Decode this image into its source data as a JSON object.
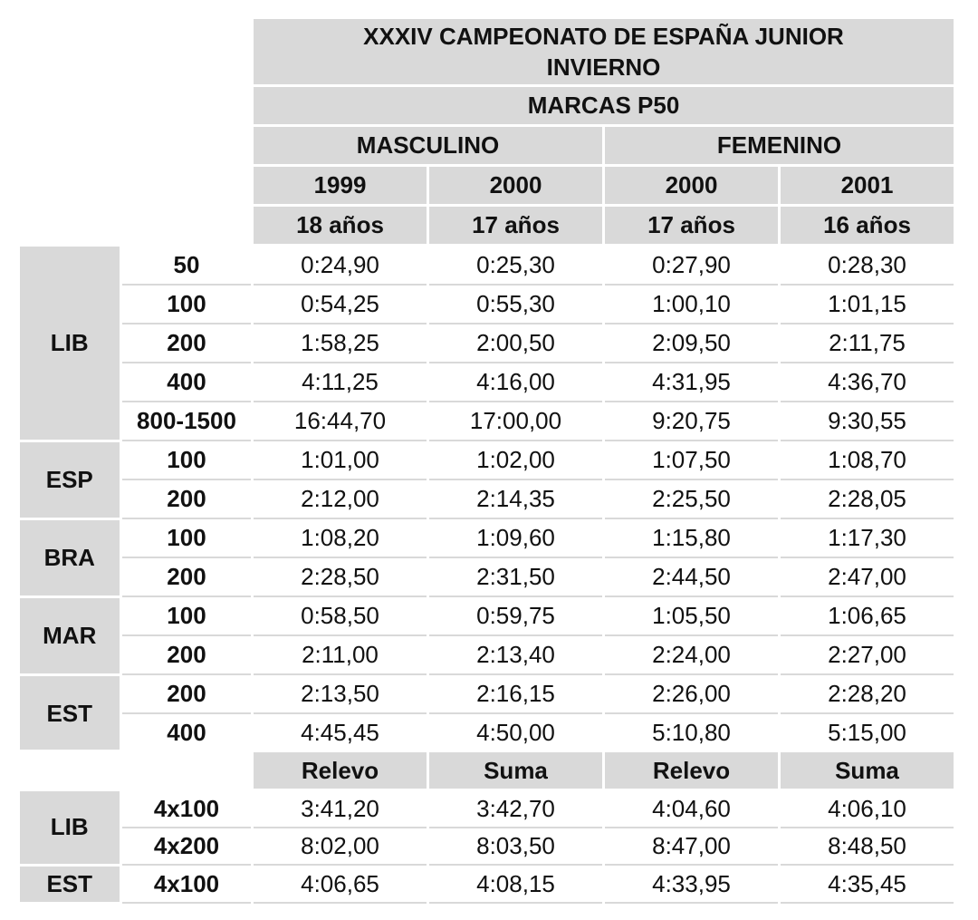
{
  "header": {
    "title_line1": "XXXIV CAMPEONATO DE ESPAÑA JUNIOR",
    "title_line2": "INVIERNO",
    "subtitle": "MARCAS P50",
    "genders": [
      "MASCULINO",
      "FEMENINO"
    ],
    "years": [
      "1999",
      "2000",
      "2000",
      "2001"
    ],
    "ages": [
      "18 años",
      "17 años",
      "17 años",
      "16 años"
    ]
  },
  "groups": [
    {
      "style": "LIB",
      "rows": [
        {
          "distance": "50",
          "values": [
            "0:24,90",
            "0:25,30",
            "0:27,90",
            "0:28,30"
          ]
        },
        {
          "distance": "100",
          "values": [
            "0:54,25",
            "0:55,30",
            "1:00,10",
            "1:01,15"
          ]
        },
        {
          "distance": "200",
          "values": [
            "1:58,25",
            "2:00,50",
            "2:09,50",
            "2:11,75"
          ]
        },
        {
          "distance": "400",
          "values": [
            "4:11,25",
            "4:16,00",
            "4:31,95",
            "4:36,70"
          ]
        },
        {
          "distance": "800-1500",
          "values": [
            "16:44,70",
            "17:00,00",
            "9:20,75",
            "9:30,55"
          ]
        }
      ]
    },
    {
      "style": "ESP",
      "rows": [
        {
          "distance": "100",
          "values": [
            "1:01,00",
            "1:02,00",
            "1:07,50",
            "1:08,70"
          ]
        },
        {
          "distance": "200",
          "values": [
            "2:12,00",
            "2:14,35",
            "2:25,50",
            "2:28,05"
          ]
        }
      ]
    },
    {
      "style": "BRA",
      "rows": [
        {
          "distance": "100",
          "values": [
            "1:08,20",
            "1:09,60",
            "1:15,80",
            "1:17,30"
          ]
        },
        {
          "distance": "200",
          "values": [
            "2:28,50",
            "2:31,50",
            "2:44,50",
            "2:47,00"
          ]
        }
      ]
    },
    {
      "style": "MAR",
      "rows": [
        {
          "distance": "100",
          "values": [
            "0:58,50",
            "0:59,75",
            "1:05,50",
            "1:06,65"
          ]
        },
        {
          "distance": "200",
          "values": [
            "2:11,00",
            "2:13,40",
            "2:24,00",
            "2:27,00"
          ]
        }
      ]
    },
    {
      "style": "EST",
      "rows": [
        {
          "distance": "200",
          "values": [
            "2:13,50",
            "2:16,15",
            "2:26,00",
            "2:28,20"
          ]
        },
        {
          "distance": "400",
          "values": [
            "4:45,45",
            "4:50,00",
            "5:10,80",
            "5:15,00"
          ]
        }
      ]
    }
  ],
  "relay": {
    "headers": [
      "Relevo",
      "Suma",
      "Relevo",
      "Suma"
    ],
    "groups": [
      {
        "style": "LIB",
        "rows": [
          {
            "distance": "4x100",
            "values": [
              "3:41,20",
              "3:42,70",
              "4:04,60",
              "4:06,10"
            ]
          },
          {
            "distance": "4x200",
            "values": [
              "8:02,00",
              "8:03,50",
              "8:47,00",
              "8:48,50"
            ]
          }
        ]
      },
      {
        "style": "EST",
        "rows": [
          {
            "distance": "4x100",
            "values": [
              "4:06,65",
              "4:08,15",
              "4:33,95",
              "4:35,45"
            ]
          }
        ]
      }
    ]
  }
}
